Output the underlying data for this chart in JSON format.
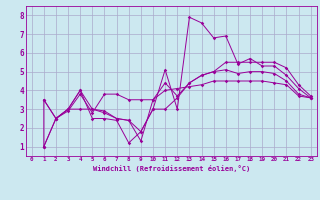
{
  "xlabel": "Windchill (Refroidissement éolien,°C)",
  "bg_color": "#cce8f0",
  "grid_color": "#aaaacc",
  "line_color": "#990099",
  "xlim": [
    -0.5,
    23.5
  ],
  "ylim": [
    0.5,
    8.5
  ],
  "xticks": [
    0,
    1,
    2,
    3,
    4,
    5,
    6,
    7,
    8,
    9,
    10,
    11,
    12,
    13,
    14,
    15,
    16,
    17,
    18,
    19,
    20,
    21,
    22,
    23
  ],
  "yticks": [
    1,
    2,
    3,
    4,
    5,
    6,
    7,
    8
  ],
  "series": [
    {
      "x": [
        1,
        1,
        2,
        3,
        4,
        5,
        6,
        7,
        8,
        9,
        10,
        11,
        12,
        13,
        14,
        15,
        16,
        17,
        18,
        19,
        20,
        21,
        22,
        23
      ],
      "y": [
        1.0,
        3.5,
        2.5,
        3.0,
        4.0,
        2.5,
        2.5,
        2.4,
        1.2,
        1.8,
        3.0,
        5.1,
        3.0,
        7.9,
        7.6,
        6.8,
        6.9,
        5.4,
        5.7,
        5.3,
        5.3,
        4.8,
        4.1,
        3.6
      ]
    },
    {
      "x": [
        1,
        2,
        3,
        4,
        5,
        6,
        7,
        8,
        9,
        10,
        11,
        12,
        13,
        14,
        15,
        16,
        17,
        18,
        19,
        20,
        21,
        22,
        23
      ],
      "y": [
        1.0,
        2.5,
        3.0,
        3.0,
        3.0,
        2.9,
        2.5,
        2.4,
        1.3,
        3.5,
        4.4,
        3.7,
        4.4,
        4.8,
        5.0,
        5.5,
        5.5,
        5.5,
        5.5,
        5.5,
        5.2,
        4.3,
        3.7
      ]
    },
    {
      "x": [
        1,
        2,
        3,
        4,
        5,
        6,
        7,
        8,
        9,
        10,
        11,
        12,
        13,
        14,
        15,
        16,
        17,
        18,
        19,
        20,
        21,
        22,
        23
      ],
      "y": [
        1.0,
        2.5,
        2.9,
        3.8,
        2.8,
        3.8,
        3.8,
        3.5,
        3.5,
        3.5,
        4.0,
        4.1,
        4.2,
        4.3,
        4.5,
        4.5,
        4.5,
        4.5,
        4.5,
        4.4,
        4.3,
        3.7,
        3.6
      ]
    },
    {
      "x": [
        1,
        2,
        3,
        4,
        5,
        6,
        7,
        8,
        9,
        10,
        11,
        12,
        13,
        14,
        15,
        16,
        17,
        18,
        19,
        20,
        21,
        22,
        23
      ],
      "y": [
        3.5,
        2.5,
        3.0,
        4.0,
        3.0,
        2.8,
        2.5,
        2.4,
        1.8,
        3.0,
        3.0,
        3.6,
        4.4,
        4.8,
        5.0,
        5.1,
        4.9,
        5.0,
        5.0,
        4.9,
        4.5,
        3.8,
        3.6
      ]
    }
  ]
}
